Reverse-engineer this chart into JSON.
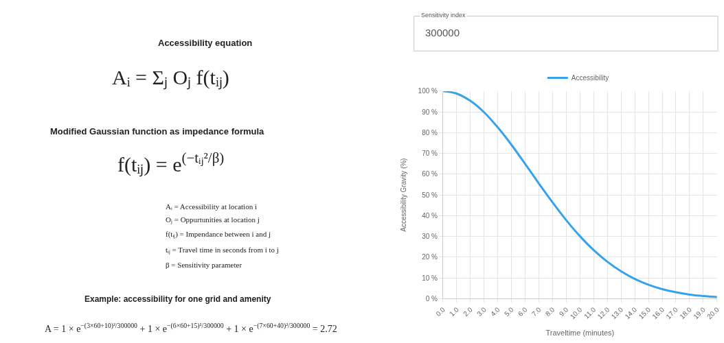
{
  "chart_data": {
    "type": "line",
    "x": [
      0,
      1,
      2,
      3,
      4,
      5,
      6,
      7,
      8,
      9,
      10,
      11,
      12,
      13,
      14,
      15,
      16,
      17,
      18,
      19,
      20
    ],
    "series": [
      {
        "name": "Accessibility",
        "color": "#36a2eb",
        "values": [
          100,
          98.8,
          95.3,
          89.8,
          82.5,
          74.1,
          64.9,
          55.5,
          46.4,
          37.8,
          30.1,
          23.4,
          17.8,
          13.2,
          9.5,
          6.7,
          4.6,
          3.1,
          2.0,
          1.3,
          0.8
        ]
      }
    ],
    "xlabel": "Traveltime (minutes)",
    "ylabel": "Accessibility Gravity (%)",
    "xlim": [
      0,
      20
    ],
    "ylim": [
      0,
      100
    ],
    "xticks": [
      {
        "value": 0,
        "label": "0.0"
      },
      {
        "value": 1,
        "label": "1.0"
      },
      {
        "value": 2,
        "label": "2.0"
      },
      {
        "value": 3,
        "label": "3.0"
      },
      {
        "value": 4,
        "label": "4.0"
      },
      {
        "value": 5,
        "label": "5.0"
      },
      {
        "value": 6,
        "label": "6.0"
      },
      {
        "value": 7,
        "label": "7.0"
      },
      {
        "value": 8,
        "label": "8.0"
      },
      {
        "value": 9,
        "label": "9.0"
      },
      {
        "value": 10,
        "label": "10.0"
      },
      {
        "value": 11,
        "label": "11.0"
      },
      {
        "value": 12,
        "label": "12.0"
      },
      {
        "value": 13,
        "label": "13.0"
      },
      {
        "value": 14,
        "label": "14.0"
      },
      {
        "value": 15,
        "label": "15.0"
      },
      {
        "value": 16,
        "label": "16.0"
      },
      {
        "value": 17,
        "label": "17.0"
      },
      {
        "value": 18,
        "label": "18.0"
      },
      {
        "value": 19,
        "label": "19.0"
      },
      {
        "value": 20,
        "label": "20.0"
      }
    ],
    "yticks": [
      {
        "value": 0,
        "label": "0 %"
      },
      {
        "value": 10,
        "label": "10 %"
      },
      {
        "value": 20,
        "label": "20 %"
      },
      {
        "value": 30,
        "label": "30 %"
      },
      {
        "value": 40,
        "label": "40 %"
      },
      {
        "value": 50,
        "label": "50 %"
      },
      {
        "value": 60,
        "label": "60 %"
      },
      {
        "value": 70,
        "label": "70 %"
      },
      {
        "value": 80,
        "label": "80 %"
      },
      {
        "value": 90,
        "label": "90 %"
      },
      {
        "value": 100,
        "label": "100 %"
      }
    ],
    "grid": true,
    "legend": "top",
    "marker": "none",
    "line_style": "solid",
    "annotations": [
      "Accessibility equation",
      "Aᵢ = Σⱼ Oⱼ f(tᵢⱼ)",
      "Modified Gaussian function as impedance formula",
      "f(tᵢⱼ) = e$^{(−tᵢⱼ²/β)}$",
      "Aᵢ = Accessibility at location i",
      "Oⱼ = Oppurtunities at location j",
      "f(tᵢⱼ) = Impendance between i and j",
      "tᵢⱼ = Travel time in seconds from i to j",
      "β = Sensitivity parameter",
      "Example: accessibility for one grid and amenity",
      "A = 1 × e$^{−(3×60+10)²/300000}$ + 1 × e$^{−(6×60+15)²/300000}$ + 1 × e$^{−(7×60+40)²/300000}$ = 2.72",
      "Sensitivity index",
      "300000"
    ]
  }
}
